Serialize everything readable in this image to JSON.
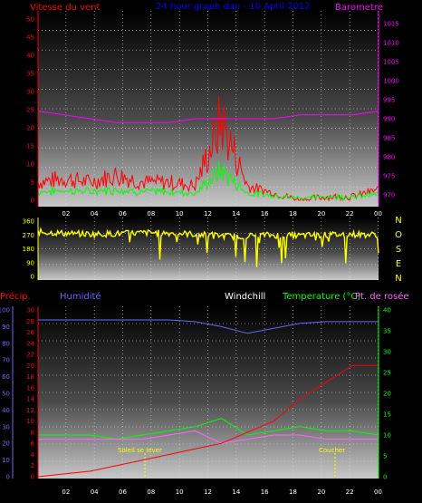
{
  "header": {
    "left_label": "Vitesse du vent",
    "center_label": "24 hour graph dan - 10 April 2012",
    "right_label": "Barometre"
  },
  "colors": {
    "wind": "#ff0000",
    "gust": "#00ff00",
    "pressure": "#ff00ff",
    "direction": "#ffff00",
    "humidity": "#6666ff",
    "temperature": "#00ff00",
    "dewpoint": "#ff66ff",
    "windchill": "#ffffff",
    "rain": "#ff0000",
    "axis_blue": "#0000ff",
    "axis_magenta": "#ff00ff",
    "axis_green": "#00ff00",
    "axis_red": "#ff0000",
    "axis_yellow": "#ffff00"
  },
  "panel_wind": {
    "y_left_ticks": [
      "0",
      "5",
      "10",
      "15",
      "20",
      "25",
      "30",
      "35",
      "40",
      "45",
      "50"
    ],
    "y_right_ticks": [
      "970",
      "975",
      "980",
      "985",
      "990",
      "995",
      "1000",
      "1005",
      "1010",
      "1015"
    ]
  },
  "panel_dir": {
    "y_ticks": [
      "0",
      "90",
      "180",
      "270",
      "360"
    ],
    "compass": [
      "N",
      "O",
      "S",
      "E",
      "N"
    ]
  },
  "panel_temp": {
    "labels": {
      "precip": "Précip.",
      "humidity": "Humidité",
      "windchill": "Windchill",
      "temperature": "Temperature (°C)",
      "dewpoint": "Pt. de rosée"
    },
    "y_left_ticks": [
      "0",
      "10",
      "20",
      "30",
      "40",
      "50",
      "60",
      "70",
      "80",
      "90",
      "100"
    ],
    "y_mid_ticks": [
      "0",
      "2",
      "4",
      "6",
      "8",
      "10",
      "12",
      "14",
      "16",
      "18",
      "20",
      "22",
      "24",
      "26",
      "28",
      "30"
    ],
    "y_right_ticks": [
      "0",
      "5",
      "10",
      "15",
      "20",
      "25",
      "30",
      "35",
      "40"
    ],
    "sunrise_label": "Soleil se lever",
    "sunset_label": "Coucher"
  },
  "x_ticks": [
    "02",
    "04",
    "06",
    "08",
    "10",
    "12",
    "14",
    "16",
    "18",
    "20",
    "22",
    "00"
  ],
  "chart_data": [
    {
      "type": "line",
      "title": "Vitesse du vent / Barometre",
      "x": [
        "00",
        "02",
        "04",
        "06",
        "08",
        "10",
        "12",
        "13",
        "14",
        "16",
        "18",
        "20",
        "22",
        "00"
      ],
      "series": [
        {
          "name": "Vitesse du vent",
          "values": [
            5,
            6,
            5,
            7,
            5,
            5,
            4,
            22,
            4,
            2,
            0,
            1,
            1,
            3
          ]
        },
        {
          "name": "Barometre",
          "values": [
            992,
            991,
            990,
            989,
            989,
            989,
            990,
            990,
            990,
            990,
            991,
            991,
            991,
            992
          ]
        }
      ],
      "ylim": [
        0,
        50
      ]
    },
    {
      "type": "line",
      "x": [
        "00",
        "02",
        "04",
        "06",
        "08",
        "10",
        "12",
        "14",
        "16",
        "18",
        "20",
        "22",
        "00"
      ],
      "series": [
        {
          "values": [
            290,
            280,
            275,
            280,
            285,
            280,
            270,
            260,
            270,
            265,
            270,
            275,
            270
          ]
        }
      ],
      "ylim": [
        0,
        360
      ]
    },
    {
      "type": "line",
      "x": [
        "00",
        "02",
        "04",
        "06",
        "08",
        "10",
        "12",
        "13",
        "14",
        "16",
        "18",
        "20",
        "22",
        "00"
      ],
      "series": [
        {
          "name": "Humidité",
          "values": [
            94,
            94,
            94,
            94,
            94,
            94,
            93,
            90,
            86,
            89,
            92,
            93,
            93,
            93
          ]
        },
        {
          "name": "Temperature (°C)",
          "values": [
            10,
            10,
            10,
            9,
            10,
            11,
            12,
            14,
            10,
            11,
            12,
            11,
            11,
            10
          ]
        },
        {
          "name": "Pt. de rosée",
          "values": [
            9,
            9,
            9,
            9,
            9,
            10,
            11,
            8,
            9,
            10,
            10,
            9,
            9,
            9
          ]
        },
        {
          "name": "Précip.",
          "values": [
            0,
            0.5,
            1,
            2,
            3,
            4,
            5,
            6,
            8,
            10,
            14,
            17,
            20,
            20
          ]
        }
      ],
      "ylim": [
        0,
        100
      ]
    }
  ]
}
